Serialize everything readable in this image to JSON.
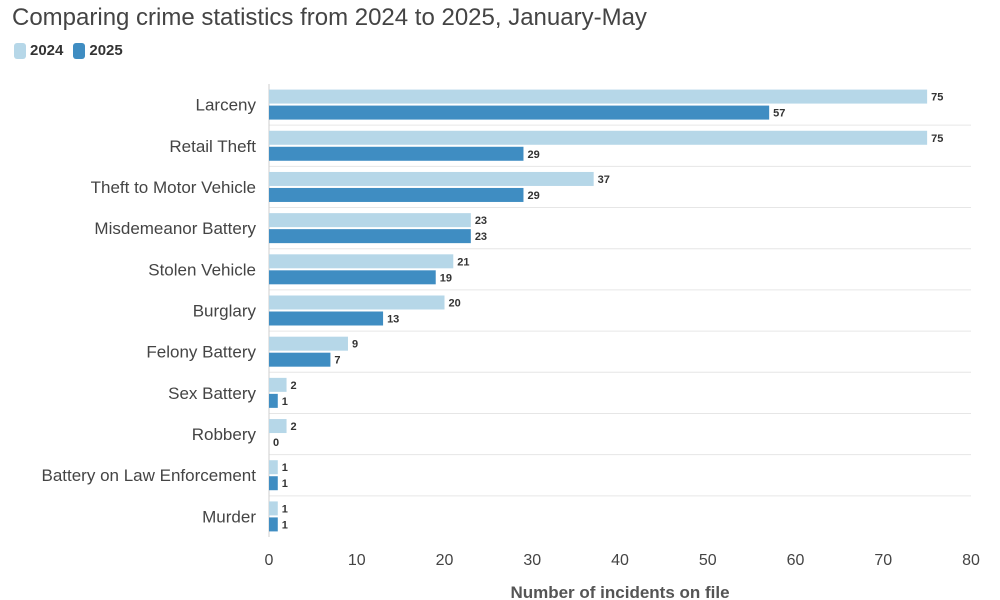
{
  "chart_data": {
    "type": "bar",
    "orientation": "horizontal",
    "title": "Comparing crime statistics from 2024 to 2025, January-May",
    "xlabel": "Number of incidents on file",
    "ylabel": "",
    "xlim": [
      0,
      80
    ],
    "xticks": [
      0,
      10,
      20,
      30,
      40,
      50,
      60,
      70,
      80
    ],
    "grid": true,
    "legend_position": "top-left",
    "categories": [
      "Larceny",
      "Retail Theft",
      "Theft to Motor Vehicle",
      "Misdemeanor Battery",
      "Stolen Vehicle",
      "Burglary",
      "Felony Battery",
      "Sex Battery",
      "Robbery",
      "Battery on Law Enforcement",
      "Murder"
    ],
    "series": [
      {
        "name": "2024",
        "color": "#b6d7e8",
        "values": [
          75,
          75,
          37,
          23,
          21,
          20,
          9,
          2,
          2,
          1,
          1
        ]
      },
      {
        "name": "2025",
        "color": "#3f8dc2",
        "values": [
          57,
          29,
          29,
          23,
          19,
          13,
          7,
          1,
          0,
          1,
          1
        ]
      }
    ]
  }
}
